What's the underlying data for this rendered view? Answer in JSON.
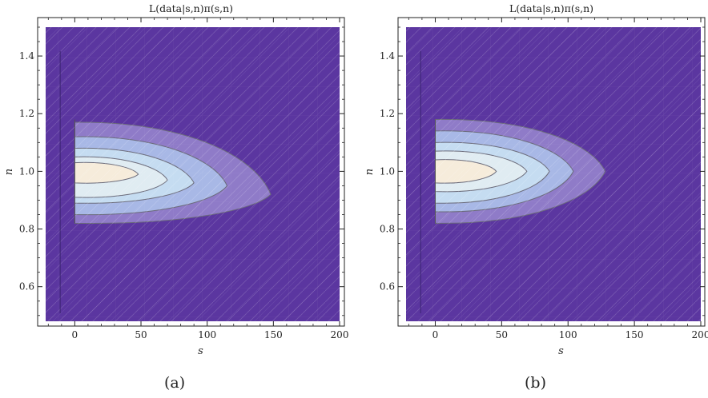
{
  "chart_data": [
    {
      "type": "contour",
      "title": "L(data|s,n)π(s,n)",
      "xlabel": "s",
      "ylabel": "n",
      "caption": "(a)",
      "xlim": [
        -22,
        200
      ],
      "ylim": [
        0.48,
        1.5
      ],
      "x_ticks": [
        0,
        50,
        100,
        150,
        200
      ],
      "y_ticks": [
        0.6,
        0.8,
        1.0,
        1.2,
        1.4
      ],
      "x_tick_labels": [
        "0",
        "50",
        "100",
        "150",
        "200"
      ],
      "y_tick_labels": [
        "0.6",
        "0.8",
        "1.0",
        "1.2",
        "1.4"
      ],
      "background_color": "#5b36a0",
      "contours": [
        {
          "level": 1,
          "color": "#8f7bc8",
          "s_max": 148,
          "n_peak": 0.92,
          "n_low": 0.82,
          "n_high": 1.17
        },
        {
          "level": 2,
          "color": "#a8b8e6",
          "s_max": 115,
          "n_peak": 0.95,
          "n_low": 0.85,
          "n_high": 1.12
        },
        {
          "level": 3,
          "color": "#c5dcf1",
          "s_max": 90,
          "n_peak": 0.96,
          "n_low": 0.89,
          "n_high": 1.08
        },
        {
          "level": 4,
          "color": "#e0ecf2",
          "s_max": 70,
          "n_peak": 0.97,
          "n_low": 0.91,
          "n_high": 1.05
        },
        {
          "level": 5,
          "color": "#f6ecdb",
          "s_max": 48,
          "n_peak": 0.99,
          "n_low": 0.96,
          "n_high": 1.03
        }
      ]
    },
    {
      "type": "contour",
      "title": "L(data|s,n)π(s,n)",
      "xlabel": "s",
      "ylabel": "n",
      "caption": "(b)",
      "xlim": [
        -22,
        200
      ],
      "ylim": [
        0.48,
        1.5
      ],
      "x_ticks": [
        0,
        50,
        100,
        150,
        200
      ],
      "y_ticks": [
        0.6,
        0.8,
        1.0,
        1.2,
        1.4
      ],
      "x_tick_labels": [
        "0",
        "50",
        "100",
        "150",
        "200"
      ],
      "y_tick_labels": [
        "0.6",
        "0.8",
        "1.0",
        "1.2",
        "1.4"
      ],
      "background_color": "#5b36a0",
      "contours": [
        {
          "level": 1,
          "color": "#8f7bc8",
          "s_max": 128,
          "n_peak": 1.0,
          "n_low": 0.82,
          "n_high": 1.18
        },
        {
          "level": 2,
          "color": "#a8b8e6",
          "s_max": 104,
          "n_peak": 1.0,
          "n_low": 0.86,
          "n_high": 1.14
        },
        {
          "level": 3,
          "color": "#c5dcf1",
          "s_max": 86,
          "n_peak": 1.0,
          "n_low": 0.89,
          "n_high": 1.1
        },
        {
          "level": 4,
          "color": "#e0ecf2",
          "s_max": 69,
          "n_peak": 1.0,
          "n_low": 0.93,
          "n_high": 1.07
        },
        {
          "level": 5,
          "color": "#f6ecdb",
          "s_max": 46,
          "n_peak": 1.0,
          "n_low": 0.96,
          "n_high": 1.04
        }
      ]
    }
  ]
}
